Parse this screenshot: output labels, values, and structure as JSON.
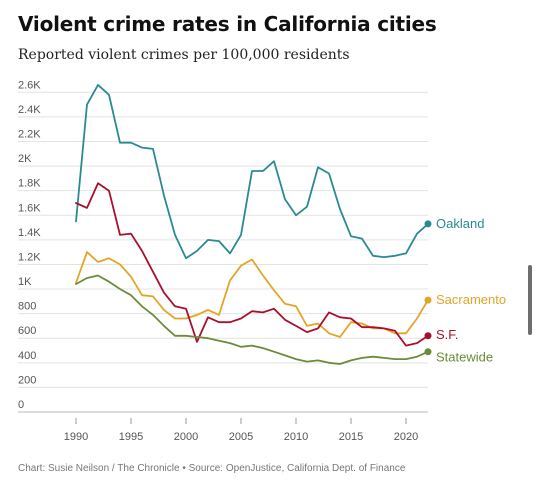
{
  "chart_data": {
    "type": "line",
    "title": "Violent crime rates in California cities",
    "subtitle": "Reported violent crimes per 100,000 residents",
    "xlabel": "",
    "ylabel": "",
    "xlim": [
      1989,
      2022
    ],
    "ylim": [
      0,
      2700
    ],
    "x_ticks": [
      1990,
      1995,
      2000,
      2005,
      2010,
      2015,
      2020
    ],
    "x_tick_labels": [
      "1990",
      "1995",
      "2000",
      "2005",
      "2010",
      "2015",
      "2020"
    ],
    "y_ticks": [
      0,
      200,
      400,
      600,
      800,
      1000,
      1200,
      1400,
      1600,
      1800,
      2000,
      2200,
      2400,
      2600
    ],
    "y_tick_labels": [
      "0",
      "200",
      "400",
      "600",
      "800",
      "1K",
      "1.2K",
      "1.4K",
      "1.6K",
      "1.8K",
      "2K",
      "2.2K",
      "2.4K",
      "2.6K"
    ],
    "grid": true,
    "legend": "labels at line ends",
    "x": [
      1990,
      1991,
      1992,
      1993,
      1994,
      1995,
      1996,
      1997,
      1998,
      1999,
      2000,
      2001,
      2002,
      2003,
      2004,
      2005,
      2006,
      2007,
      2008,
      2009,
      2010,
      2011,
      2012,
      2013,
      2014,
      2015,
      2016,
      2017,
      2018,
      2019,
      2020,
      2021,
      2022
    ],
    "series": [
      {
        "name": "Oakland",
        "color": "#2a8a94",
        "values": [
          1550,
          2500,
          2660,
          2580,
          2190,
          2190,
          2150,
          2140,
          1760,
          1440,
          1250,
          1310,
          1400,
          1390,
          1290,
          1440,
          1960,
          1960,
          2040,
          1730,
          1600,
          1670,
          1990,
          1940,
          1650,
          1430,
          1410,
          1270,
          1260,
          1270,
          1290,
          1450,
          1530
        ]
      },
      {
        "name": "Sacramento",
        "color": "#e3a526",
        "values": [
          1050,
          1300,
          1220,
          1250,
          1200,
          1100,
          950,
          940,
          830,
          760,
          760,
          790,
          830,
          790,
          1070,
          1190,
          1240,
          1110,
          990,
          880,
          860,
          700,
          720,
          640,
          610,
          730,
          720,
          680,
          680,
          640,
          640,
          760,
          910
        ]
      },
      {
        "name": "S.F.",
        "color": "#a8102e",
        "values": [
          1700,
          1660,
          1860,
          1800,
          1440,
          1450,
          1310,
          1140,
          970,
          860,
          840,
          570,
          770,
          730,
          730,
          760,
          820,
          810,
          840,
          750,
          700,
          650,
          680,
          810,
          770,
          760,
          690,
          690,
          680,
          660,
          540,
          560,
          620
        ]
      },
      {
        "name": "Statewide",
        "color": "#6e8a3a",
        "values": [
          1040,
          1090,
          1110,
          1060,
          1000,
          950,
          860,
          790,
          700,
          620,
          620,
          610,
          600,
          580,
          560,
          530,
          540,
          520,
          490,
          460,
          430,
          410,
          420,
          400,
          390,
          420,
          440,
          450,
          440,
          430,
          430,
          450,
          490
        ]
      }
    ]
  },
  "footer": {
    "credit": "Chart: Susie Neilson / The Chronicle • Source: OpenJustice, California Dept. of Finance"
  }
}
